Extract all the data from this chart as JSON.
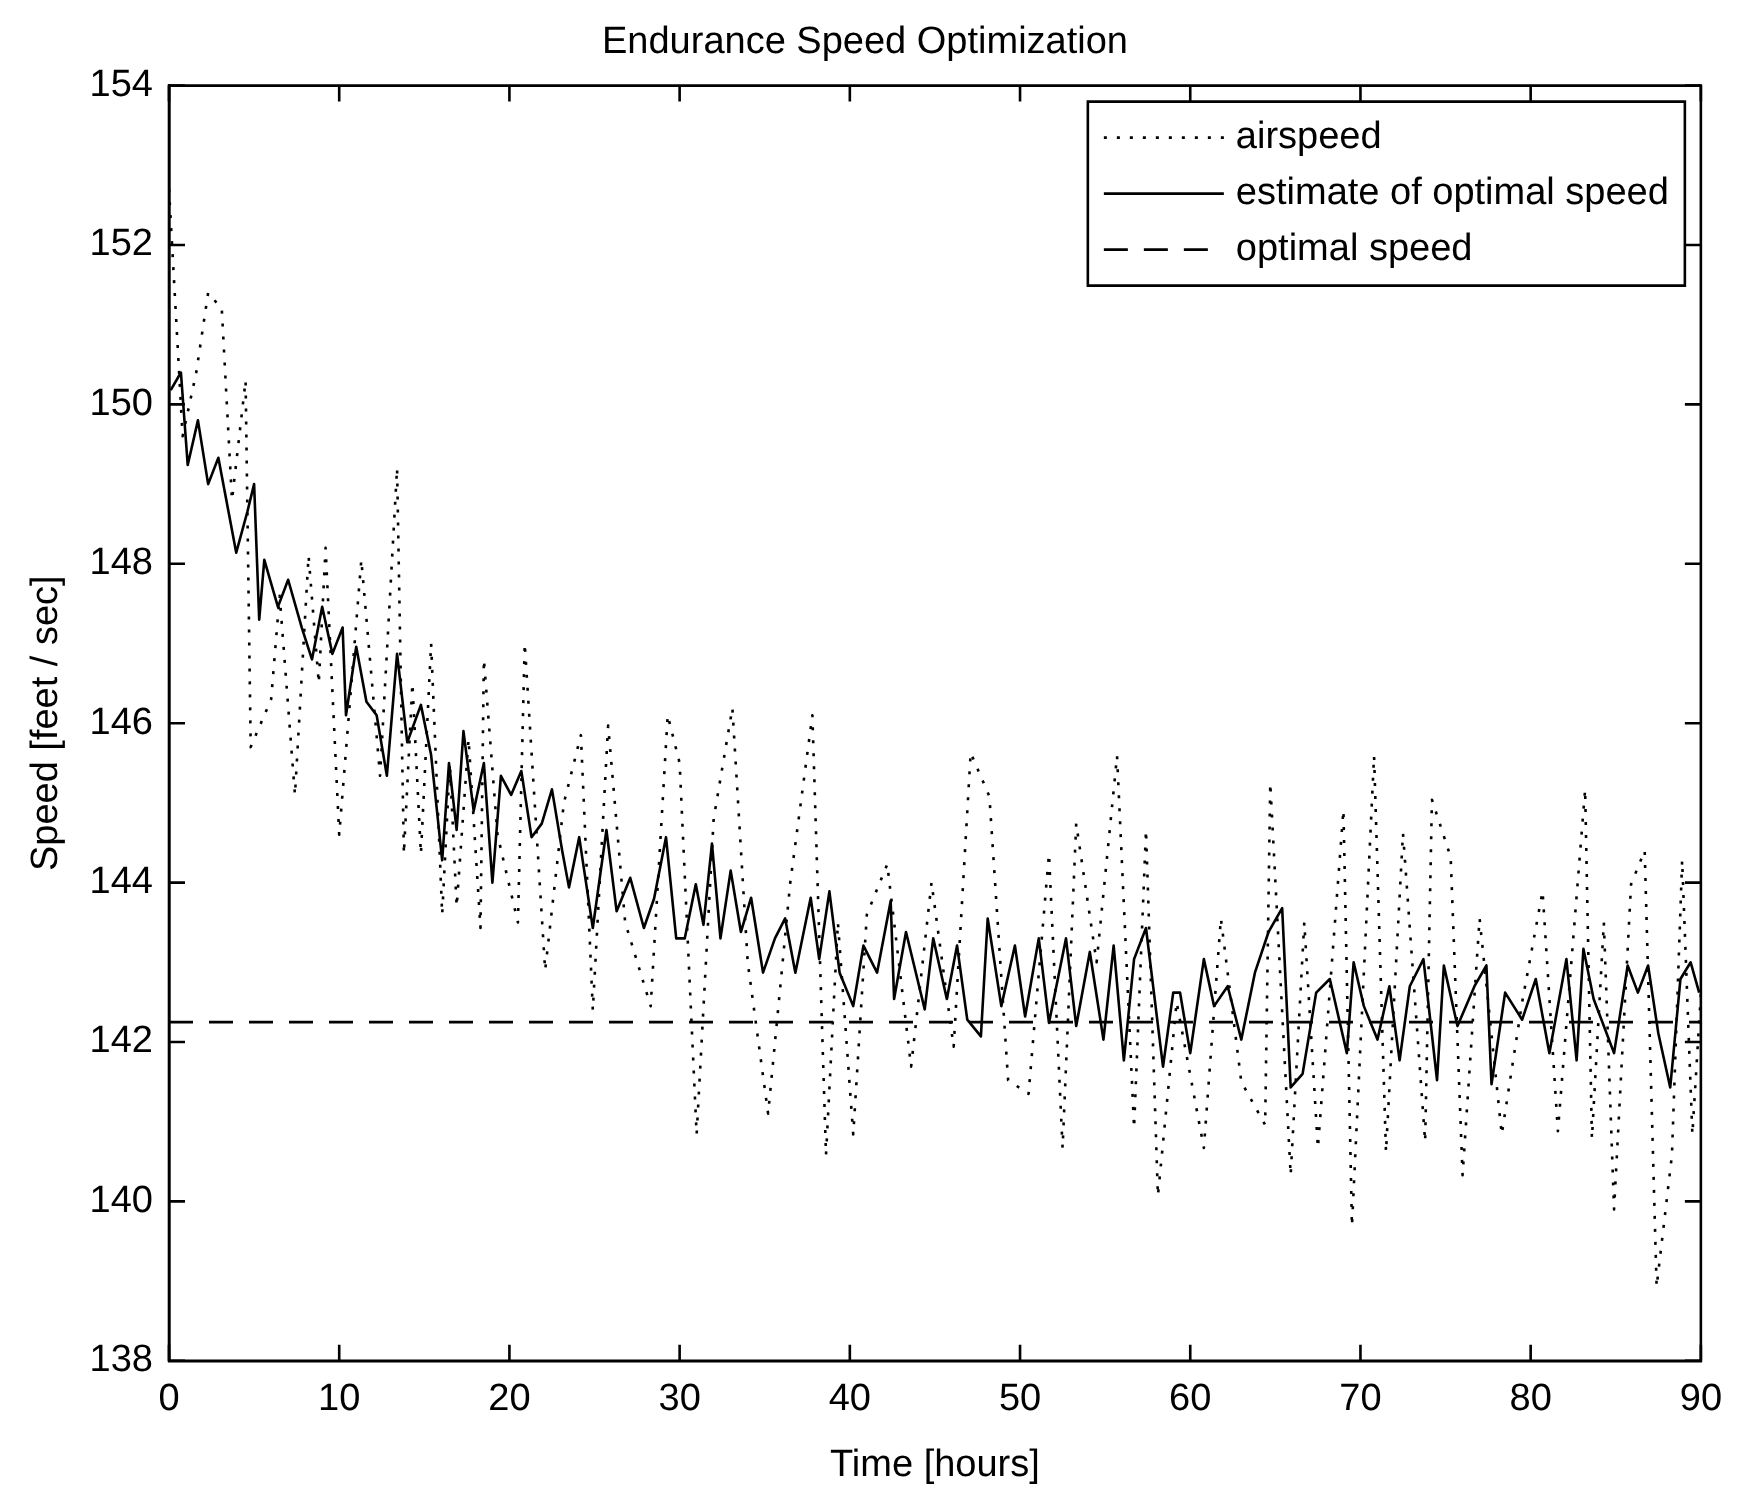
{
  "chart_data": {
    "type": "line",
    "title": "Endurance Speed Optimization",
    "xlabel": "Time [hours]",
    "ylabel": "Speed [feet / sec]",
    "xlim": [
      0,
      90
    ],
    "xticks": [
      0,
      10,
      20,
      30,
      40,
      50,
      60,
      70,
      80,
      90
    ],
    "ylim": [
      138,
      154
    ],
    "yticks": [
      138,
      140,
      142,
      144,
      146,
      148,
      150,
      152,
      154
    ],
    "grid": false,
    "legend": "top right",
    "marker": "none",
    "series": [
      {
        "name": "airspeed",
        "color": "#000000",
        "line_style": "dotted",
        "x": [
          0,
          0.8,
          1.6,
          2.3,
          3.1,
          3.7,
          4.5,
          4.8,
          6.0,
          6.5,
          7.4,
          8.2,
          8.8,
          9.2,
          10.0,
          11.3,
          12.4,
          13.4,
          13.8,
          14.3,
          14.8,
          15.4,
          16.05,
          16.5,
          16.9,
          17.6,
          18.3,
          18.5,
          19.3,
          20.5,
          20.9,
          22.1,
          23.2,
          24.2,
          24.9,
          25.8,
          26.8,
          28.3,
          29.3,
          30.0,
          31.0,
          32.0,
          33.1,
          34.0,
          35.2,
          36.5,
          37.8,
          38.6,
          39.3,
          40.2,
          41.0,
          42.2,
          43.6,
          44.8,
          46.1,
          47.1,
          48.2,
          49.3,
          50.5,
          51.7,
          52.5,
          53.3,
          54.5,
          55.7,
          56.7,
          57.4,
          58.1,
          59.2,
          60.8,
          61.8,
          63.0,
          64.4,
          64.7,
          65.9,
          66.7,
          67.5,
          69.0,
          69.5,
          70.8,
          71.5,
          72.5,
          73.8,
          74.2,
          75.3,
          76.0,
          77.0,
          78.3,
          79.5,
          80.7,
          81.6,
          83.2,
          83.6,
          84.3,
          84.9,
          85.9,
          86.7,
          87.4,
          88.3,
          88.9,
          89.5,
          90
        ],
        "values": [
          152.7,
          149.6,
          150.4,
          151.4,
          151.2,
          148.8,
          150.3,
          145.7,
          146.3,
          147.6,
          145.1,
          148.1,
          146.5,
          148.2,
          144.6,
          148.05,
          145.34,
          149.2,
          144.36,
          146.5,
          144.36,
          147.0,
          143.6,
          145.5,
          143.7,
          145.8,
          143.43,
          146.8,
          144.6,
          143.5,
          147.0,
          142.9,
          145.0,
          145.85,
          142.4,
          145.97,
          143.5,
          142.45,
          146.1,
          145.5,
          140.84,
          144.8,
          146.19,
          143.0,
          141.1,
          144.0,
          146.1,
          140.58,
          143.5,
          140.84,
          143.6,
          144.23,
          141.69,
          144.0,
          141.94,
          145.63,
          145.08,
          141.52,
          141.35,
          144.36,
          140.67,
          144.74,
          143.0,
          145.59,
          140.92,
          144.66,
          140.07,
          142.5,
          140.67,
          143.55,
          141.5,
          140.96,
          145.25,
          140.33,
          143.5,
          140.67,
          144.91,
          139.69,
          145.59,
          140.62,
          144.62,
          140.75,
          145.04,
          144.32,
          140.33,
          143.55,
          140.84,
          142.5,
          143.89,
          140.88,
          145.17,
          140.79,
          143.5,
          139.9,
          143.98,
          144.4,
          138.93,
          140.58,
          144.28,
          140.84,
          142.6
        ]
      },
      {
        "name": "estimate of optimal speed",
        "color": "#000000",
        "line_style": "solid",
        "x": [
          0.1,
          0.7,
          1.1,
          1.7,
          2.3,
          2.9,
          3.5,
          3.95,
          4.6,
          5.0,
          5.3,
          5.6,
          6.4,
          7.0,
          7.8,
          8.4,
          9.0,
          9.6,
          10.2,
          10.4,
          11.0,
          11.6,
          12.2,
          12.8,
          13.4,
          14.0,
          14.8,
          15.4,
          16.05,
          16.45,
          16.9,
          17.3,
          17.9,
          18.5,
          19.0,
          19.5,
          20.1,
          20.7,
          21.3,
          21.9,
          22.5,
          23.1,
          23.5,
          24.1,
          24.9,
          25.7,
          26.3,
          27.1,
          27.9,
          28.5,
          29.2,
          29.8,
          30.3,
          30.95,
          31.4,
          31.9,
          32.4,
          33.0,
          33.6,
          34.2,
          34.9,
          35.6,
          36.2,
          36.8,
          37.7,
          38.2,
          38.8,
          39.4,
          40.2,
          40.8,
          41.6,
          42.4,
          42.6,
          43.3,
          44.4,
          44.9,
          45.7,
          46.3,
          46.9,
          47.7,
          48.1,
          48.9,
          49.7,
          50.3,
          51.1,
          51.7,
          52.7,
          53.3,
          54.1,
          54.9,
          55.5,
          56.1,
          56.7,
          57.4,
          58.4,
          59.0,
          59.4,
          60.0,
          60.8,
          61.4,
          62.2,
          63.0,
          63.8,
          64.6,
          65.4,
          65.9,
          66.6,
          67.4,
          68.2,
          69.2,
          69.6,
          70.2,
          71.0,
          71.7,
          72.3,
          72.9,
          73.7,
          74.5,
          74.9,
          75.7,
          76.7,
          77.4,
          77.7,
          78.5,
          79.5,
          80.3,
          81.1,
          82.1,
          82.7,
          83.1,
          83.7,
          84.3,
          84.9,
          85.7,
          86.3,
          86.9,
          87.5,
          88.2,
          88.8,
          89.4,
          89.9
        ],
        "values": [
          150.18,
          150.4,
          149.24,
          149.8,
          149.0,
          149.33,
          148.65,
          148.14,
          148.65,
          149.0,
          147.3,
          148.05,
          147.46,
          147.8,
          147.2,
          146.8,
          147.46,
          146.87,
          147.2,
          146.1,
          146.96,
          146.27,
          146.1,
          145.34,
          146.87,
          145.76,
          146.23,
          145.6,
          144.28,
          145.5,
          144.66,
          145.9,
          144.9,
          145.5,
          144.0,
          145.34,
          145.1,
          145.4,
          144.57,
          144.74,
          145.17,
          144.4,
          143.94,
          144.57,
          143.43,
          144.66,
          143.64,
          144.06,
          143.43,
          143.8,
          144.57,
          143.3,
          143.3,
          143.98,
          143.47,
          144.49,
          143.3,
          144.15,
          143.38,
          143.81,
          142.87,
          143.3,
          143.55,
          142.87,
          143.81,
          143.04,
          143.89,
          142.87,
          142.45,
          143.21,
          142.87,
          143.77,
          142.54,
          143.38,
          142.41,
          143.3,
          142.54,
          143.21,
          142.28,
          142.07,
          143.55,
          142.45,
          143.21,
          142.32,
          143.3,
          142.24,
          143.3,
          142.2,
          143.13,
          142.03,
          143.21,
          141.77,
          143.04,
          143.43,
          141.69,
          142.62,
          142.62,
          141.86,
          143.04,
          142.45,
          142.7,
          142.03,
          142.87,
          143.38,
          143.68,
          141.43,
          141.6,
          142.62,
          142.79,
          141.86,
          143.0,
          142.45,
          142.03,
          142.7,
          141.77,
          142.7,
          143.04,
          141.52,
          142.96,
          142.2,
          142.7,
          142.96,
          141.47,
          142.62,
          142.28,
          142.79,
          141.86,
          143.04,
          141.77,
          143.17,
          142.54,
          142.2,
          141.86,
          142.96,
          142.62,
          142.96,
          142.11,
          141.43,
          142.79,
          143.0,
          142.62
        ]
      },
      {
        "name": "optimal speed",
        "color": "#000000",
        "line_style": "dashed",
        "x": [
          0,
          90
        ],
        "values": [
          142.25,
          142.25
        ]
      }
    ]
  }
}
